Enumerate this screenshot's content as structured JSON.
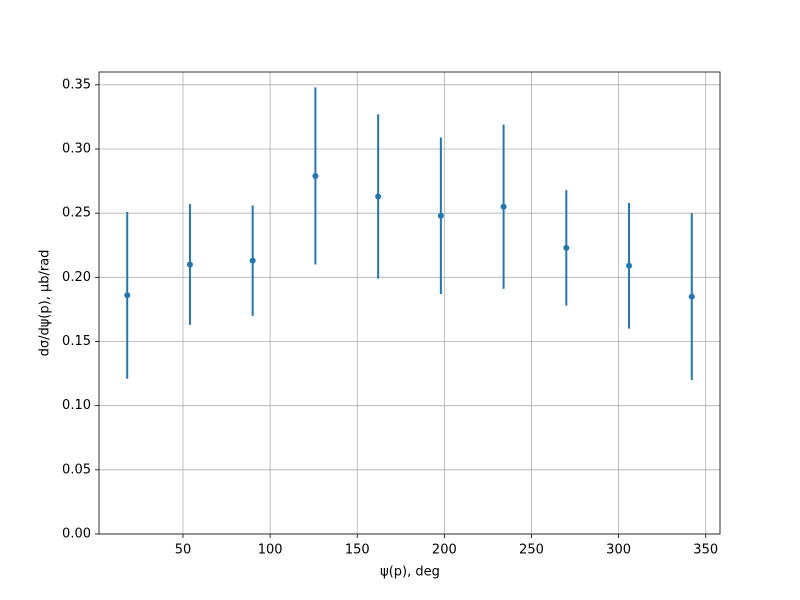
{
  "chart_data": {
    "type": "errorbar",
    "xlabel": "ψ(p), deg",
    "ylabel": "dσ/dψ(p), μb/rad",
    "x": [
      18,
      54,
      90,
      126,
      162,
      198,
      234,
      270,
      306,
      342
    ],
    "series": [
      {
        "color": "#1f77b4",
        "values": [
          0.186,
          0.21,
          0.213,
          0.279,
          0.263,
          0.248,
          0.255,
          0.223,
          0.209,
          0.185
        ],
        "errors": [
          0.065,
          0.047,
          0.043,
          0.069,
          0.064,
          0.061,
          0.064,
          0.045,
          0.049,
          0.065
        ]
      }
    ],
    "xlim": [
      1.8,
      358.2
    ],
    "ylim": [
      0,
      0.36
    ],
    "xticks": [
      50,
      100,
      150,
      200,
      250,
      300,
      350
    ],
    "yticks": [
      {
        "value": 0,
        "label": "0.00"
      },
      {
        "value": 0.05,
        "label": "0.05"
      },
      {
        "value": 0.1,
        "label": "0.10"
      },
      {
        "value": 0.15,
        "label": "0.15"
      },
      {
        "value": 0.2,
        "label": "0.20"
      },
      {
        "value": 0.25,
        "label": "0.25"
      },
      {
        "value": 0.3,
        "label": "0.30"
      },
      {
        "value": 0.35,
        "label": "0.35"
      }
    ],
    "grid": true
  }
}
